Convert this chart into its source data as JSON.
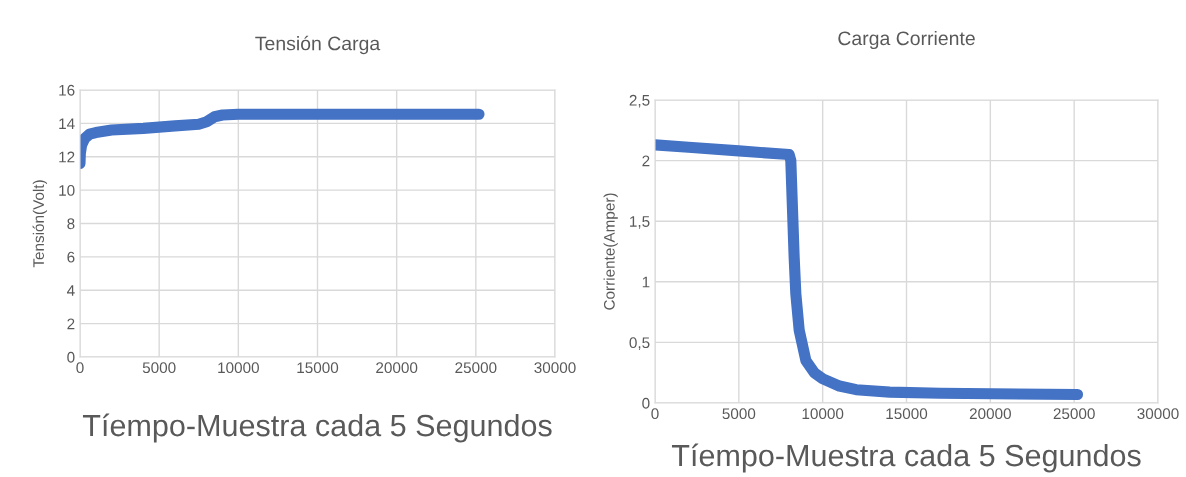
{
  "chart_data": [
    {
      "type": "line",
      "title": "Tensión Carga",
      "xlabel": "Tíempo-Muestra cada 5 Segundos",
      "ylabel": "Tensión(Volt)",
      "x": [
        0,
        20,
        100,
        300,
        600,
        1000,
        2000,
        4000,
        6000,
        7500,
        8000,
        8500,
        9000,
        10000,
        25200
      ],
      "series": [
        {
          "color": "#4472c4",
          "values": [
            11.6,
            12.2,
            12.7,
            13.1,
            13.35,
            13.45,
            13.6,
            13.7,
            13.85,
            13.95,
            14.1,
            14.4,
            14.5,
            14.55,
            14.55
          ]
        }
      ],
      "xlim": [
        0,
        30000
      ],
      "xticks": [
        0,
        5000,
        10000,
        15000,
        20000,
        25000,
        30000
      ],
      "ylim": [
        0,
        16
      ],
      "yticks": [
        0,
        2,
        4,
        6,
        8,
        10,
        12,
        14,
        16
      ],
      "grid": true,
      "marker": "none",
      "line_style": "solid"
    },
    {
      "type": "line",
      "title": "Carga Corriente",
      "xlabel": "Tíempo-Muestra cada 5 Segundos",
      "ylabel": "Corriente(Amper)",
      "x": [
        0,
        2000,
        5000,
        8000,
        8100,
        8200,
        8300,
        8400,
        8600,
        9000,
        9500,
        10000,
        11000,
        12000,
        14000,
        17000,
        25200
      ],
      "series": [
        {
          "color": "#4472c4",
          "values": [
            2.13,
            2.11,
            2.08,
            2.05,
            2.0,
            1.6,
            1.2,
            0.9,
            0.6,
            0.35,
            0.25,
            0.2,
            0.14,
            0.11,
            0.09,
            0.08,
            0.07
          ]
        }
      ],
      "xlim": [
        0,
        30000
      ],
      "xticks": [
        0,
        5000,
        10000,
        15000,
        20000,
        25000,
        30000
      ],
      "ylim": [
        0,
        2.5
      ],
      "yticks": [
        0,
        {
          "value": 0.5,
          "label": "0,5"
        },
        1,
        {
          "value": 1.5,
          "label": "1,5"
        },
        2,
        {
          "value": 2.5,
          "label": "2,5"
        }
      ],
      "grid": true,
      "marker": "none",
      "line_style": "solid"
    }
  ]
}
